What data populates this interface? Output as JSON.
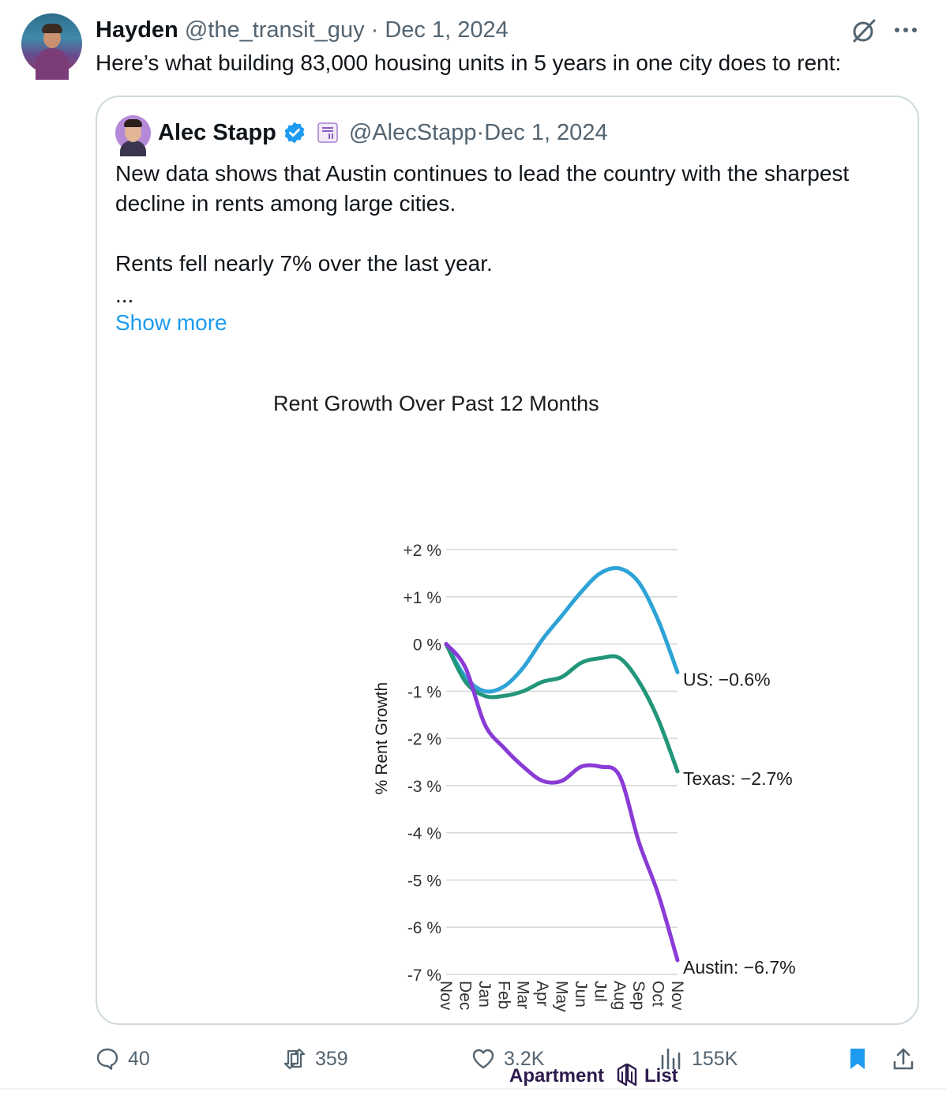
{
  "tweet": {
    "author_name": "Hayden",
    "author_handle": "@the_transit_guy",
    "separator": " · ",
    "date": "Dec 1, 2024",
    "text": "Here’s what building 83,000 housing units in 5 years in one city does to rent:"
  },
  "quote": {
    "author_name": "Alec Stapp",
    "author_handle": "@AlecStapp",
    "separator": " · ",
    "date": "Dec 1, 2024",
    "text_line1": "New data shows that Austin continues to lead the country with the sharpest decline in rents among large cities.",
    "text_line2": "Rents fell nearly 7% over the last year.",
    "ellipsis": "...",
    "show_more": "Show more"
  },
  "chart_data": {
    "type": "line",
    "title": "Rent Growth Over Past 12 Months",
    "ylabel": "% Rent Growth",
    "ylim": [
      -7,
      2
    ],
    "yticks": [
      "+2 %",
      "+1 %",
      "0 %",
      "-1 %",
      "-2 %",
      "-3 %",
      "-4 %",
      "-5 %",
      "-6 %",
      "-7 %"
    ],
    "categories": [
      "Nov",
      "Dec",
      "Jan",
      "Feb",
      "Mar",
      "Apr",
      "May",
      "Jun",
      "Jul",
      "Aug",
      "Sep",
      "Oct",
      "Nov"
    ],
    "grid": true,
    "series": [
      {
        "name": "US",
        "label": "US: −0.6%",
        "color": "#2ea3d6",
        "values": [
          0,
          -0.7,
          -1.0,
          -0.9,
          -0.5,
          0.1,
          0.6,
          1.1,
          1.5,
          1.6,
          1.3,
          0.5,
          -0.6
        ]
      },
      {
        "name": "Texas",
        "label": "Texas: −2.7%",
        "color": "#22967a",
        "values": [
          0,
          -0.8,
          -1.1,
          -1.1,
          -1.0,
          -0.8,
          -0.7,
          -0.4,
          -0.3,
          -0.3,
          -0.8,
          -1.6,
          -2.7
        ]
      },
      {
        "name": "Austin",
        "label": "Austin: −6.7%",
        "color": "#8a3bd6",
        "values": [
          0,
          -0.5,
          -1.7,
          -2.2,
          -2.6,
          -2.9,
          -2.9,
          -2.6,
          -2.6,
          -2.8,
          -4.2,
          -5.3,
          -6.7
        ]
      }
    ],
    "source_logo_text": "Apartment List"
  },
  "actions": {
    "replies": "40",
    "reposts": "359",
    "likes": "3.2K",
    "views": "155K"
  },
  "colors": {
    "link": "#1d9bf0",
    "bookmark": "#1d9bf0",
    "muted": "#536471"
  }
}
